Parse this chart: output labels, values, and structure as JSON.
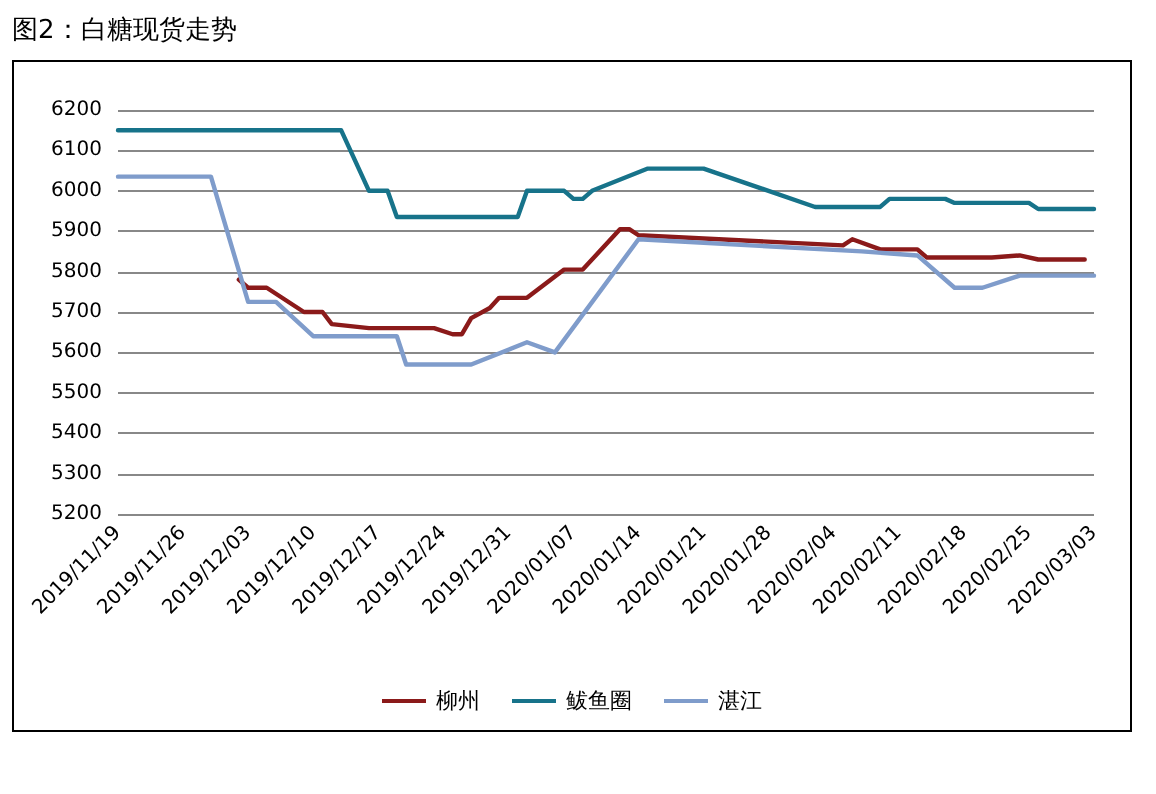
{
  "chart_data": {
    "type": "line",
    "title": "图2：白糖现货走势",
    "xlim": [
      "2019-11-19",
      "2020-03-03"
    ],
    "xticks": [
      {
        "value": "2019-11-19",
        "label": "2019/11/19"
      },
      {
        "value": "2019-11-26",
        "label": "2019/11/26"
      },
      {
        "value": "2019-12-03",
        "label": "2019/12/03"
      },
      {
        "value": "2019-12-10",
        "label": "2019/12/10"
      },
      {
        "value": "2019-12-17",
        "label": "2019/12/17"
      },
      {
        "value": "2019-12-24",
        "label": "2019/12/24"
      },
      {
        "value": "2019-12-31",
        "label": "2019/12/31"
      },
      {
        "value": "2020-01-07",
        "label": "2020/01/07"
      },
      {
        "value": "2020-01-14",
        "label": "2020/01/14"
      },
      {
        "value": "2020-01-21",
        "label": "2020/01/21"
      },
      {
        "value": "2020-01-28",
        "label": "2020/01/28"
      },
      {
        "value": "2020-02-04",
        "label": "2020/02/04"
      },
      {
        "value": "2020-02-11",
        "label": "2020/02/11"
      },
      {
        "value": "2020-02-18",
        "label": "2020/02/18"
      },
      {
        "value": "2020-02-25",
        "label": "2020/02/25"
      },
      {
        "value": "2020-03-03",
        "label": "2020/03/03"
      }
    ],
    "ylim": [
      5200,
      6200
    ],
    "yticks": [
      5200,
      5300,
      5400,
      5500,
      5600,
      5700,
      5800,
      5900,
      6000,
      6100,
      6200
    ],
    "grid": "y",
    "legend": "bottom",
    "marker": "none",
    "line_style": "solid",
    "series": [
      {
        "name": "柳州",
        "color": "#8b1a1a",
        "x": [
          "2019-12-02",
          "2019-12-03",
          "2019-12-05",
          "2019-12-09",
          "2019-12-11",
          "2019-12-12",
          "2019-12-16",
          "2019-12-23",
          "2019-12-25",
          "2019-12-26",
          "2019-12-27",
          "2019-12-29",
          "2019-12-30",
          "2020-01-02",
          "2020-01-06",
          "2020-01-08",
          "2020-01-12",
          "2020-01-13",
          "2020-01-14",
          "2020-02-05",
          "2020-02-06",
          "2020-02-09",
          "2020-02-13",
          "2020-02-14",
          "2020-02-21",
          "2020-02-24",
          "2020-02-26",
          "2020-03-02"
        ],
        "values": [
          5780,
          5760,
          5760,
          5700,
          5700,
          5670,
          5660,
          5660,
          5645,
          5645,
          5685,
          5710,
          5735,
          5735,
          5805,
          5805,
          5905,
          5905,
          5890,
          5865,
          5880,
          5855,
          5855,
          5835,
          5835,
          5840,
          5830,
          5830
        ]
      },
      {
        "name": "鲅鱼圈",
        "color": "#17738a",
        "x": [
          "2019-11-19",
          "2019-12-13",
          "2019-12-16",
          "2019-12-18",
          "2019-12-19",
          "2020-01-01",
          "2020-01-02",
          "2020-01-06",
          "2020-01-07",
          "2020-01-08",
          "2020-01-09",
          "2020-01-15",
          "2020-01-21",
          "2020-02-02",
          "2020-02-09",
          "2020-02-10",
          "2020-02-16",
          "2020-02-17",
          "2020-02-25",
          "2020-02-26",
          "2020-03-03"
        ],
        "values": [
          6150,
          6150,
          6000,
          6000,
          5935,
          5935,
          6000,
          6000,
          5980,
          5980,
          6000,
          6055,
          6055,
          5960,
          5960,
          5980,
          5980,
          5970,
          5970,
          5955,
          5955
        ]
      },
      {
        "name": "湛江",
        "color": "#7f9ccb",
        "x": [
          "2019-11-19",
          "2019-11-29",
          "2019-12-03",
          "2019-12-06",
          "2019-12-10",
          "2019-12-19",
          "2019-12-20",
          "2019-12-27",
          "2020-01-02",
          "2020-01-05",
          "2020-01-14",
          "2020-02-07",
          "2020-02-13",
          "2020-02-17",
          "2020-02-20",
          "2020-02-24",
          "2020-03-03"
        ],
        "values": [
          6035,
          6035,
          5725,
          5725,
          5640,
          5640,
          5570,
          5570,
          5625,
          5600,
          5880,
          5850,
          5840,
          5760,
          5760,
          5790,
          5790
        ]
      }
    ]
  }
}
